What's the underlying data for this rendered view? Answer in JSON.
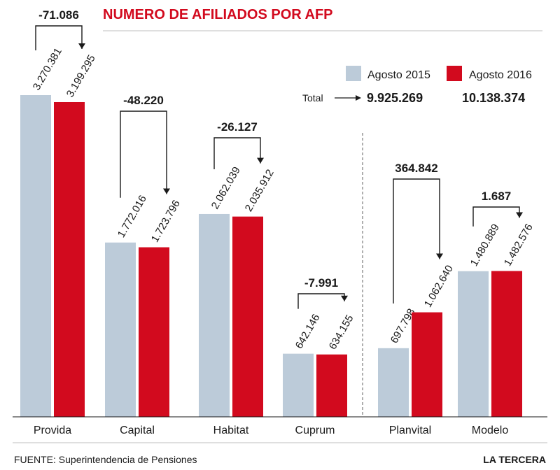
{
  "chart_data": {
    "type": "bar",
    "title": "NUMERO DE AFILIADOS POR AFP",
    "categories": [
      "Provida",
      "Capital",
      "Habitat",
      "Cuprum",
      "Planvital",
      "Modelo"
    ],
    "series": [
      {
        "name": "Agosto 2015",
        "color": "#bccbd9",
        "values": [
          3270381,
          1772016,
          2062039,
          642146,
          697798,
          1480889
        ],
        "labels": [
          "3.270.381",
          "1.772.016",
          "2.062.039",
          "642.146",
          "697.798",
          "1.480.889"
        ]
      },
      {
        "name": "Agosto 2016",
        "color": "#d20a1e",
        "values": [
          3199295,
          1723796,
          2035912,
          634155,
          1062640,
          1482576
        ],
        "labels": [
          "3.199.295",
          "1.723.796",
          "2.035.912",
          "634.155",
          "1.062.640",
          "1.482.576"
        ]
      }
    ],
    "differences": [
      "-71.086",
      "-48.220",
      "-26.127",
      "-7.991",
      "364.842",
      "1.687"
    ],
    "totals": {
      "label": "Total",
      "values": [
        "9.925.269",
        "10.138.374"
      ]
    },
    "ylim": [
      0,
      3270381
    ],
    "legend": "top-right",
    "grid": false,
    "title_color": "#d20a1e"
  },
  "footer": {
    "source": "FUENTE: Superintendencia de Pensiones",
    "brand": "LA TERCERA"
  }
}
